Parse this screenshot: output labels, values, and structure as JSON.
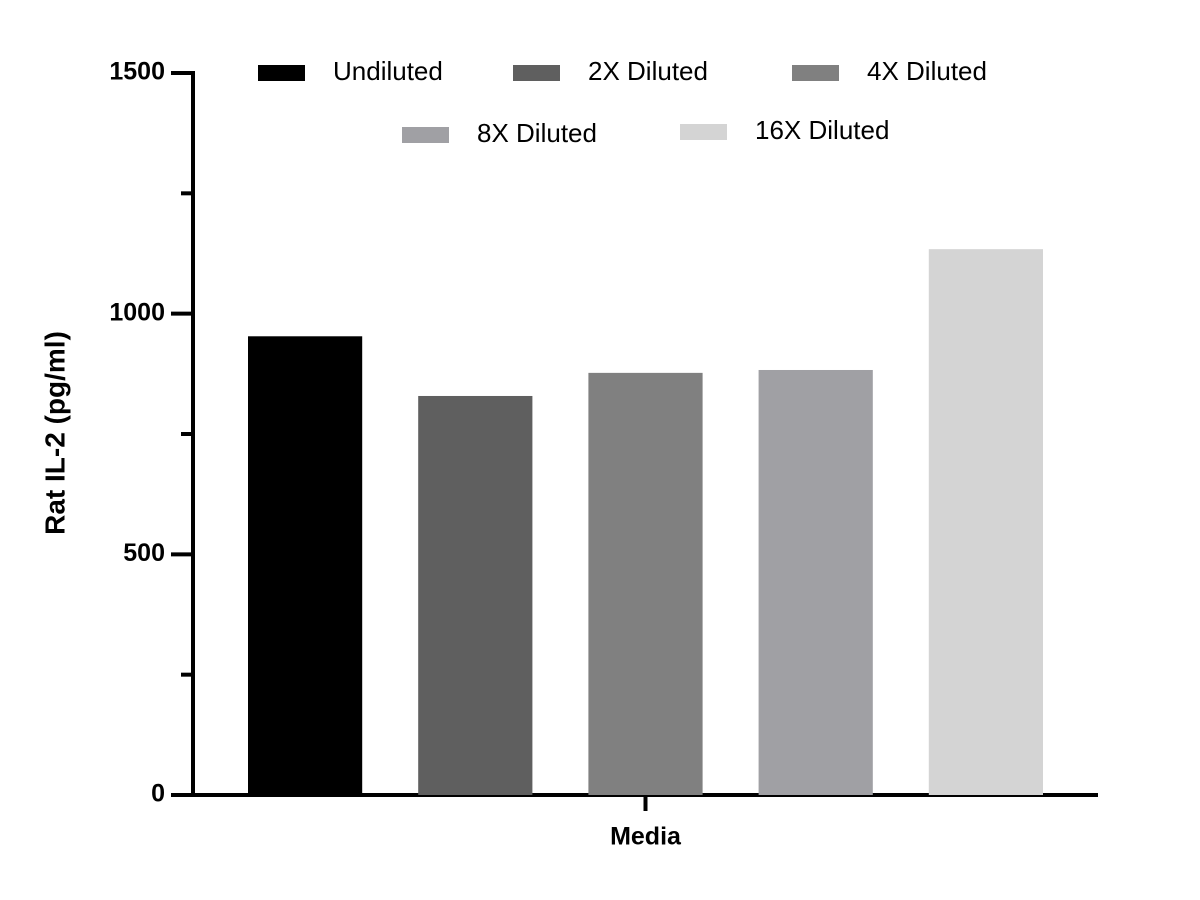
{
  "chart_data": {
    "type": "bar",
    "y_label": "Rat IL-2 (pg/ml)",
    "categories": [
      "Media"
    ],
    "series": [
      {
        "name": "Undiluted",
        "color": "#000000",
        "values": [
          953
        ]
      },
      {
        "name": "2X Diluted",
        "color": "#5f5f5f",
        "values": [
          829
        ]
      },
      {
        "name": "4X Diluted",
        "color": "#808080",
        "values": [
          877
        ]
      },
      {
        "name": "8X Diluted",
        "color": "#a0a0a4",
        "values": [
          883
        ]
      },
      {
        "name": "16X Diluted",
        "color": "#d4d4d4",
        "values": [
          1134
        ]
      }
    ],
    "ylim": [
      0,
      1500
    ],
    "yticks": [
      0,
      500,
      1000,
      1500
    ],
    "minor_yticks": [
      250,
      750,
      1250
    ],
    "grid": false
  }
}
